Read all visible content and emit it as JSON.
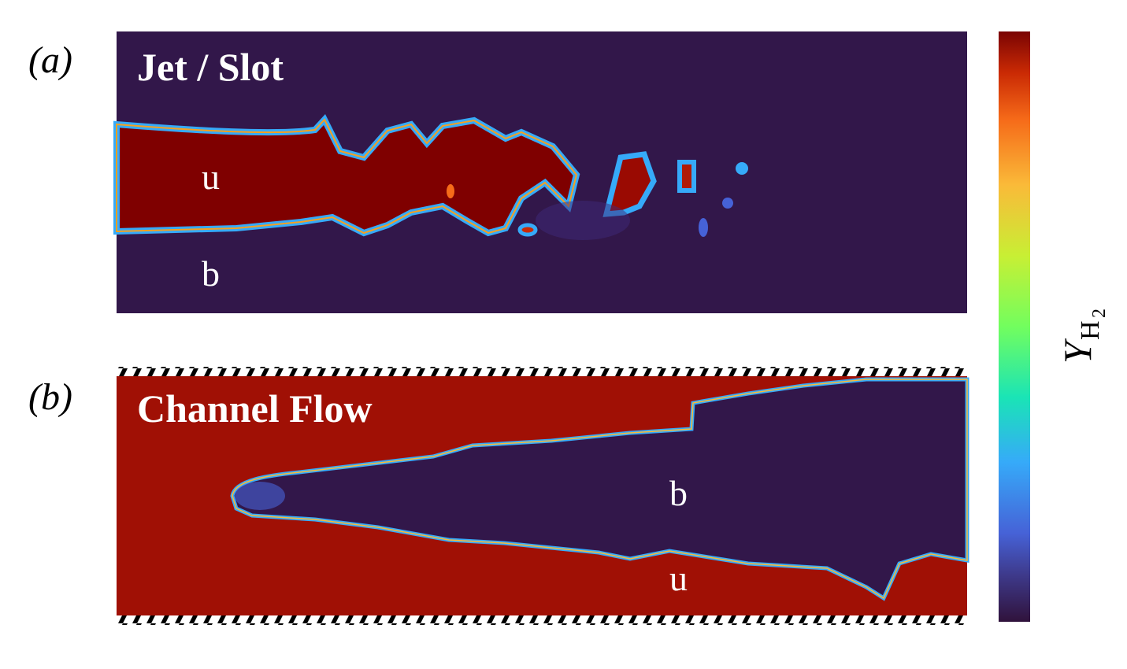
{
  "panel_a": {
    "label": "(a)",
    "title": "Jet / Slot",
    "upper_region": "u",
    "lower_region": "b"
  },
  "panel_b": {
    "label": "(b)",
    "title": "Channel Flow",
    "upper_region": "b",
    "lower_region": "u"
  },
  "colorbar": {
    "symbol": "Y",
    "subscript": "H",
    "subsubscript": "2"
  }
}
